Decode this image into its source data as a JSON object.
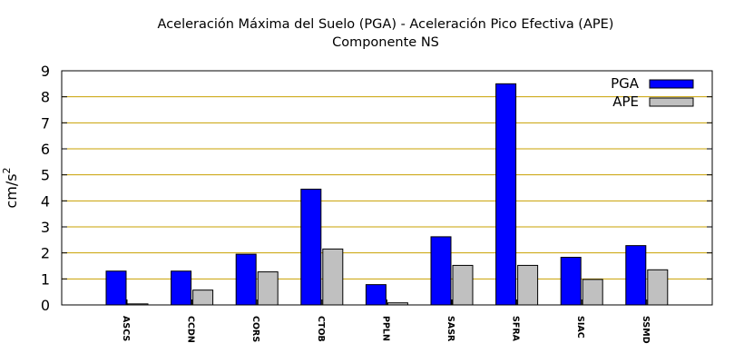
{
  "chart_data": {
    "type": "bar",
    "title": "Aceleración Máxima del Suelo (PGA) -  Aceleración Pico Efectiva (APE)",
    "subtitle": "Componente NS",
    "xlabel": "",
    "ylabel": "cm/s",
    "ylabel_sup": "2",
    "ylim": [
      0,
      9
    ],
    "yticks": [
      "0",
      "1",
      "2",
      "3",
      "4",
      "5",
      "6",
      "7",
      "8",
      "9"
    ],
    "grid": true,
    "legend_position": "top-right",
    "categories": [
      "ASCS",
      "CCDN",
      "CORS",
      "CTOB",
      "PPLN",
      "SASR",
      "SFRA",
      "SIAC",
      "SSMD"
    ],
    "series": [
      {
        "name": "PGA",
        "color": "#0000ff",
        "values": [
          1.3,
          1.3,
          1.95,
          4.45,
          0.78,
          2.62,
          8.5,
          1.83,
          2.28
        ]
      },
      {
        "name": "APE",
        "color": "#c0c0c0",
        "values": [
          0.04,
          0.57,
          1.27,
          2.15,
          0.08,
          1.52,
          1.52,
          0.98,
          1.35
        ]
      }
    ],
    "grid_color": "#c8a000"
  }
}
